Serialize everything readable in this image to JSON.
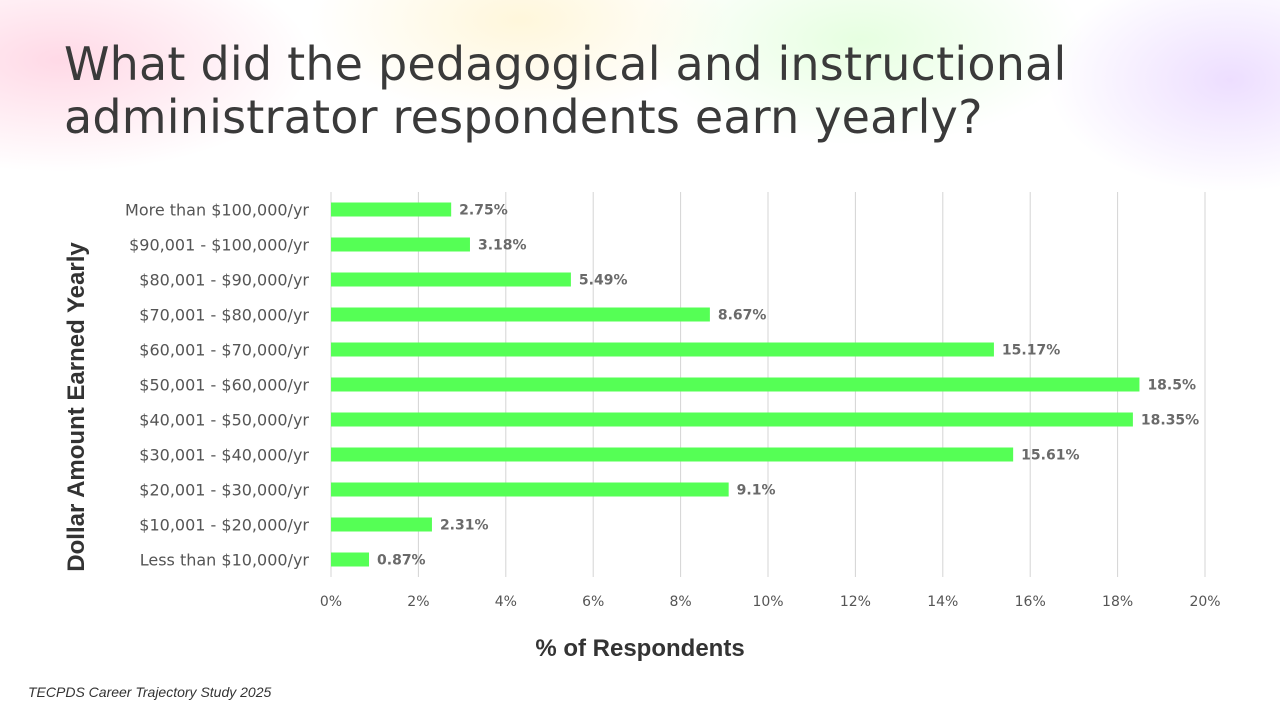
{
  "slide": {
    "title": "What did the pedagogical and instructional administrator respondents earn yearly?",
    "footer": "TECPDS Career Trajectory Study 2025"
  },
  "colors": {
    "bar": "#55ff55",
    "gridline": "#d4d4d4",
    "text": "#333333",
    "label": "#555555"
  },
  "chart_data": {
    "type": "bar",
    "orientation": "horizontal",
    "title": "",
    "xlabel": "% of Respondents",
    "ylabel": "Dollar Amount Earned Yearly",
    "xlim": [
      0,
      20
    ],
    "x_ticks": [
      "0%",
      "2%",
      "4%",
      "6%",
      "8%",
      "10%",
      "12%",
      "14%",
      "16%",
      "18%",
      "20%"
    ],
    "grid": "vertical",
    "categories": [
      "More than $100,000/yr",
      "$90,001 - $100,000/yr",
      "$80,001 - $90,000/yr",
      "$70,001 - $80,000/yr",
      "$60,001 - $70,000/yr",
      "$50,001 - $60,000/yr",
      "$40,001 - $50,000/yr",
      "$30,001 - $40,000/yr",
      "$20,001 - $30,000/yr",
      "$10,001 - $20,000/yr",
      "Less than $10,000/yr"
    ],
    "values": [
      2.75,
      3.18,
      5.49,
      8.67,
      15.17,
      18.5,
      18.35,
      15.61,
      9.1,
      2.31,
      0.87
    ],
    "data_labels": [
      "2.75%",
      "3.18%",
      "5.49%",
      "8.67%",
      "15.17%",
      "18.5%",
      "18.35%",
      "15.61%",
      "9.1%",
      "2.31%",
      "0.87%"
    ]
  }
}
